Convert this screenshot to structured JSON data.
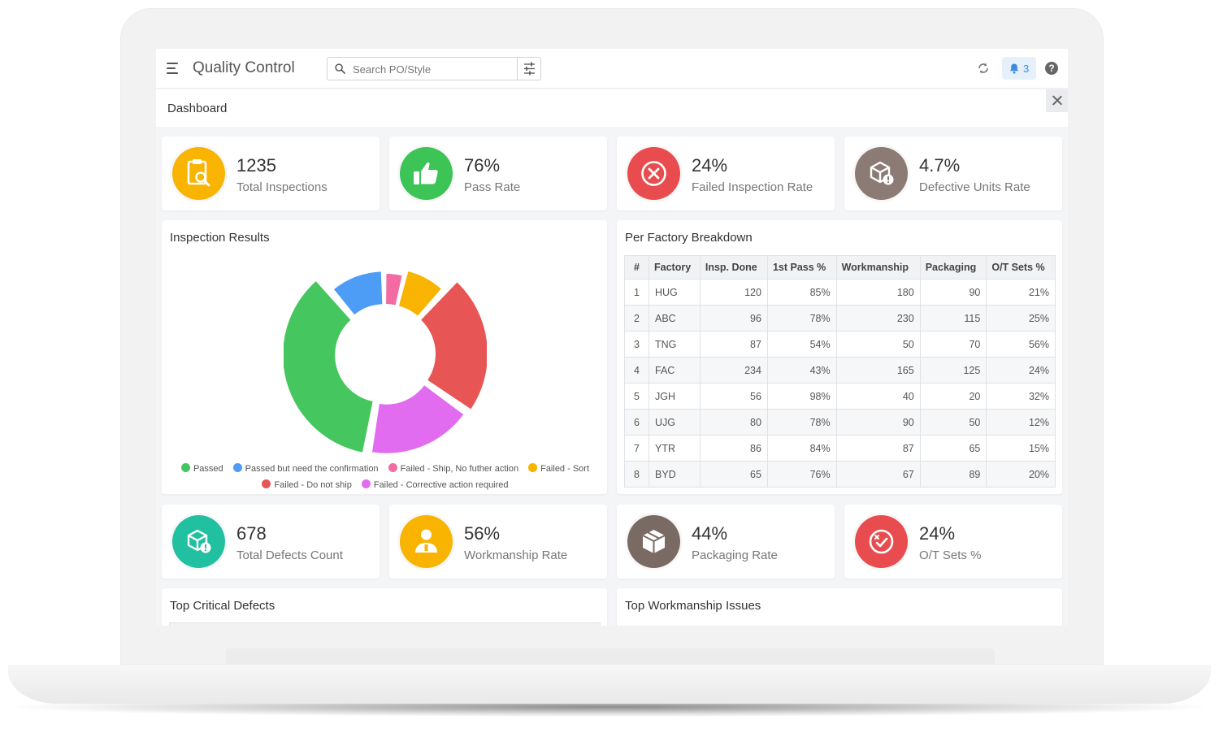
{
  "header": {
    "app_title": "Quality Control",
    "search_placeholder": "Search PO/Style",
    "notification_count": "3",
    "help_symbol": "?"
  },
  "subheader": {
    "title": "Dashboard"
  },
  "stats_top": [
    {
      "value": "1235",
      "label": "Total Inspections",
      "color": "#f8b400",
      "icon": "clipboard-search-icon"
    },
    {
      "value": "76%",
      "label": "Pass Rate",
      "color": "#3cc457",
      "icon": "thumbs-up-icon"
    },
    {
      "value": "24%",
      "label": "Failed Inspection Rate",
      "color": "#e84c4f",
      "icon": "x-circle-icon"
    },
    {
      "value": "4.7%",
      "label": "Defective Units Rate",
      "color": "#8b7b74",
      "icon": "box-alert-icon"
    }
  ],
  "stats_bottom": [
    {
      "value": "678",
      "label": "Total Defects Count",
      "color": "#21c0a0",
      "icon": "box-alert-icon"
    },
    {
      "value": "56%",
      "label": "Workmanship Rate",
      "color": "#f8b400",
      "icon": "worker-icon"
    },
    {
      "value": "44%",
      "label": "Packaging Rate",
      "color": "#7a6a64",
      "icon": "package-icon"
    },
    {
      "value": "24%",
      "label": "O/T Sets %",
      "color": "#e84c4f",
      "icon": "badge-x-icon"
    }
  ],
  "inspection_results": {
    "title": "Inspection Results",
    "chart_data": {
      "type": "pie",
      "categories": [
        "Passed",
        "Passed but need the confirmation",
        "Failed - Ship, No futher action",
        "Failed - Sort",
        "Failed - Do not ship",
        "Failed - Corrective action required"
      ],
      "values": [
        36,
        11,
        4,
        8,
        23,
        18
      ],
      "colors": [
        "#46c65e",
        "#4d9cf5",
        "#f26ba2",
        "#f8b400",
        "#e85555",
        "#e26cf0"
      ],
      "legend_position": "bottom"
    }
  },
  "factory_breakdown": {
    "title": "Per Factory Breakdown",
    "columns": [
      "#",
      "Factory",
      "Insp. Done",
      "1st Pass %",
      "Workmanship",
      "Packaging",
      "O/T Sets %"
    ],
    "rows": [
      [
        "1",
        "HUG",
        "120",
        "85%",
        "180",
        "90",
        "21%"
      ],
      [
        "2",
        "ABC",
        "96",
        "78%",
        "230",
        "115",
        "25%"
      ],
      [
        "3",
        "TNG",
        "87",
        "54%",
        "50",
        "70",
        "56%"
      ],
      [
        "4",
        "FAC",
        "234",
        "43%",
        "165",
        "125",
        "24%"
      ],
      [
        "5",
        "JGH",
        "56",
        "98%",
        "40",
        "20",
        "32%"
      ],
      [
        "6",
        "UJG",
        "80",
        "78%",
        "90",
        "50",
        "12%"
      ],
      [
        "7",
        "YTR",
        "86",
        "84%",
        "87",
        "65",
        "15%"
      ],
      [
        "8",
        "BYD",
        "65",
        "76%",
        "67",
        "89",
        "20%"
      ]
    ]
  },
  "top_critical_defects": {
    "title": "Top Critical Defects"
  },
  "top_workmanship_issues": {
    "title": "Top Workmanship Issues"
  }
}
